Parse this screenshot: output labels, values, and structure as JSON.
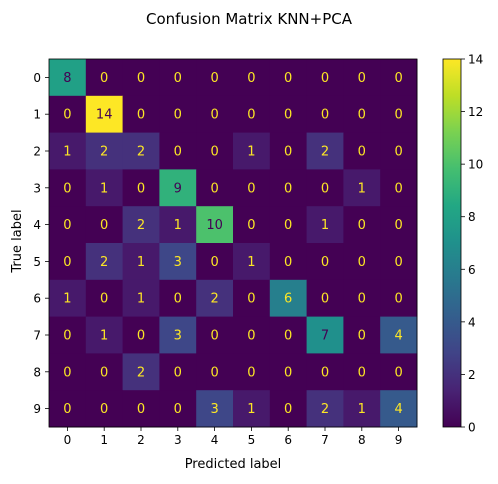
{
  "chart_data": {
    "type": "heatmap",
    "title": "Confusion Matrix KNN+PCA",
    "xlabel": "Predicted label",
    "ylabel": "True label",
    "x_categories": [
      "0",
      "1",
      "2",
      "3",
      "4",
      "5",
      "6",
      "7",
      "8",
      "9"
    ],
    "y_categories": [
      "0",
      "1",
      "2",
      "3",
      "4",
      "5",
      "6",
      "7",
      "8",
      "9"
    ],
    "values": [
      [
        8,
        0,
        0,
        0,
        0,
        0,
        0,
        0,
        0,
        0
      ],
      [
        0,
        14,
        0,
        0,
        0,
        0,
        0,
        0,
        0,
        0
      ],
      [
        1,
        2,
        2,
        0,
        0,
        1,
        0,
        2,
        0,
        0
      ],
      [
        0,
        1,
        0,
        9,
        0,
        0,
        0,
        0,
        1,
        0
      ],
      [
        0,
        0,
        2,
        1,
        10,
        0,
        0,
        1,
        0,
        0
      ],
      [
        0,
        2,
        1,
        3,
        0,
        1,
        0,
        0,
        0,
        0
      ],
      [
        1,
        0,
        1,
        0,
        2,
        0,
        6,
        0,
        0,
        0
      ],
      [
        0,
        1,
        0,
        3,
        0,
        0,
        0,
        7,
        0,
        4
      ],
      [
        0,
        0,
        2,
        0,
        0,
        0,
        0,
        0,
        0,
        0
      ],
      [
        0,
        0,
        0,
        0,
        3,
        1,
        0,
        2,
        1,
        4
      ]
    ],
    "colormap": "viridis",
    "colorbar": {
      "ticks": [
        "0",
        "2",
        "4",
        "6",
        "8",
        "10",
        "12",
        "14"
      ],
      "vmin": 0,
      "vmax": 14
    },
    "grid": false,
    "text_color_light": "#fde725",
    "text_color_dark": "#440154"
  }
}
